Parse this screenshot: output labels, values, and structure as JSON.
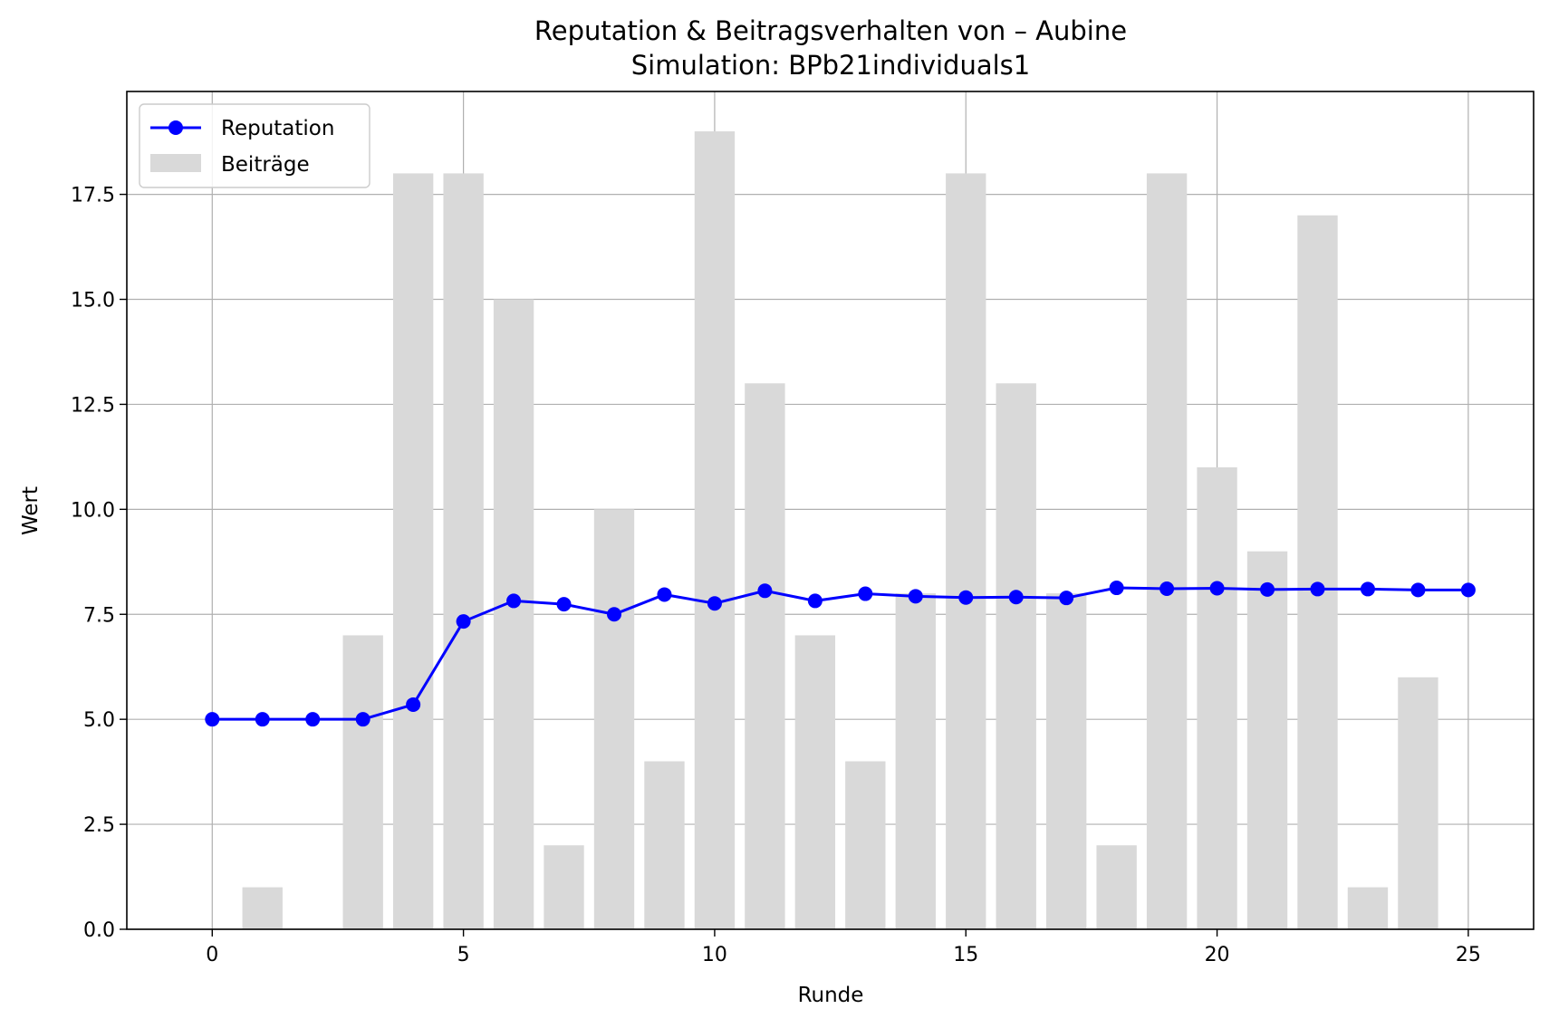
{
  "chart_data": {
    "type": "bar+line",
    "title": "Reputation & Beitragsverhalten von – Aubine",
    "subtitle": "Simulation: BPb21individuals1",
    "xlabel": "Runde",
    "ylabel": "Wert",
    "xlim": [
      -1.7,
      26.3
    ],
    "ylim": [
      0,
      19.95
    ],
    "xticks": [
      0,
      5,
      10,
      15,
      20,
      25
    ],
    "yticks": [
      0.0,
      2.5,
      5.0,
      7.5,
      10.0,
      12.5,
      15.0,
      17.5
    ],
    "ytick_labels": [
      "0.0",
      "2.5",
      "5.0",
      "7.5",
      "10.0",
      "12.5",
      "15.0",
      "17.5"
    ],
    "grid": true,
    "legend_position": "top-left",
    "x": [
      0,
      1,
      2,
      3,
      4,
      5,
      6,
      7,
      8,
      9,
      10,
      11,
      12,
      13,
      14,
      15,
      16,
      17,
      18,
      19,
      20,
      21,
      22,
      23,
      24,
      25
    ],
    "series": [
      {
        "name": "Reputation",
        "kind": "line",
        "color": "#0000ff",
        "marker": "circle",
        "values": [
          5.0,
          5.0,
          5.0,
          5.0,
          5.35,
          7.33,
          7.82,
          7.74,
          7.5,
          7.97,
          7.76,
          8.06,
          7.82,
          7.99,
          7.93,
          7.9,
          7.91,
          7.89,
          8.13,
          8.11,
          8.12,
          8.09,
          8.1,
          8.1,
          8.08,
          8.08
        ]
      },
      {
        "name": "Beiträge",
        "kind": "bar",
        "color": "#d9d9d9",
        "values": [
          0,
          1,
          0,
          7,
          18,
          18,
          15,
          2,
          10,
          4,
          19,
          13,
          7,
          4,
          8,
          18,
          13,
          8,
          2,
          18,
          11,
          9,
          17,
          1,
          6,
          0
        ]
      }
    ]
  }
}
